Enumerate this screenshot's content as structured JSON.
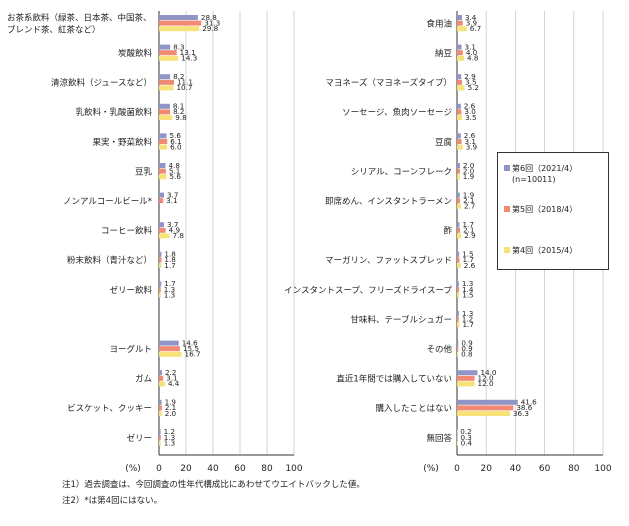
{
  "chart_data": [
    {
      "type": "bar",
      "orientation": "horizontal",
      "xlabel": "(%)",
      "xlim": [
        0,
        100
      ],
      "xticks": [
        0,
        20,
        40,
        60,
        80,
        100
      ],
      "grid": true,
      "categories": [
        "お茶系飲料（緑茶、日本茶、中国茶、ブレンド茶、紅茶など）",
        "炭酸飲料",
        "清涼飲料（ジュースなど）",
        "乳飲料・乳酸菌飲料",
        "果実・野菜飲料",
        "豆乳",
        "ノンアルコールビール*",
        "コーヒー飲料",
        "粉末飲料（青汁など）",
        "ゼリー飲料",
        "",
        "ヨーグルト",
        "ガム",
        "ビスケット、クッキー",
        "ゼリー"
      ],
      "series": [
        {
          "name": "第6回（2021/4）(n=10011)",
          "values": [
            28.8,
            8.3,
            8.2,
            8.1,
            5.6,
            4.8,
            3.7,
            3.7,
            1.8,
            1.7,
            null,
            14.6,
            2.2,
            1.9,
            1.2
          ]
        },
        {
          "name": "第5回（2018/4）",
          "values": [
            31.3,
            13.1,
            11.1,
            8.2,
            6.1,
            5.1,
            3.1,
            4.9,
            1.8,
            1.3,
            null,
            15.5,
            3.1,
            2.1,
            1.3
          ]
        },
        {
          "name": "第4回（2015/4）",
          "values": [
            29.8,
            14.3,
            10.7,
            9.8,
            6.0,
            5.6,
            null,
            7.8,
            1.7,
            1.3,
            null,
            16.7,
            4.4,
            2.0,
            1.3
          ]
        }
      ]
    },
    {
      "type": "bar",
      "orientation": "horizontal",
      "xlabel": "(%)",
      "xlim": [
        0,
        100
      ],
      "xticks": [
        0,
        20,
        40,
        60,
        80,
        100
      ],
      "grid": true,
      "categories": [
        "食用油",
        "納豆",
        "マヨネーズ（マヨネーズタイプ）",
        "ソーセージ、魚肉ソーセージ",
        "豆腐",
        "シリアル、コーンフレーク",
        "即席めん、インスタントラーメン",
        "酢",
        "マーガリン、ファットスプレッド",
        "インスタントスープ、フリーズドライスープ",
        "甘味料、テーブルシュガー",
        "その他",
        "直近1年間では購入していない",
        "購入したことはない",
        "無回答"
      ],
      "series": [
        {
          "name": "第6回（2021/4）(n=10011)",
          "values": [
            3.4,
            3.1,
            2.9,
            2.6,
            2.6,
            2.0,
            1.9,
            1.7,
            1.5,
            1.3,
            1.3,
            0.9,
            14.0,
            41.6,
            0.2
          ]
        },
        {
          "name": "第5回（2018/4）",
          "values": [
            3.9,
            4.0,
            3.5,
            3.0,
            3.1,
            2.0,
            2.1,
            2.1,
            1.7,
            1.4,
            1.2,
            0.9,
            12.0,
            38.6,
            0.3
          ]
        },
        {
          "name": "第4回（2015/4）",
          "values": [
            6.7,
            4.8,
            5.2,
            3.5,
            3.9,
            1.9,
            2.7,
            2.9,
            2.6,
            1.5,
            1.7,
            0.8,
            12.0,
            36.3,
            0.4
          ]
        }
      ]
    }
  ],
  "legend": [
    {
      "label": "第6回（2021/4）",
      "sub": "(n=10011)",
      "color": "#8f95c6"
    },
    {
      "label": "第5回（2018/4）",
      "sub": "",
      "color": "#f08a72"
    },
    {
      "label": "第4回（2015/4）",
      "sub": "",
      "color": "#f7e27a"
    }
  ],
  "notes": [
    "注1）過去調査は、今回調査の性年代構成比にあわせてウエイトバックした値。",
    "注2）*は第4回にはない。"
  ]
}
